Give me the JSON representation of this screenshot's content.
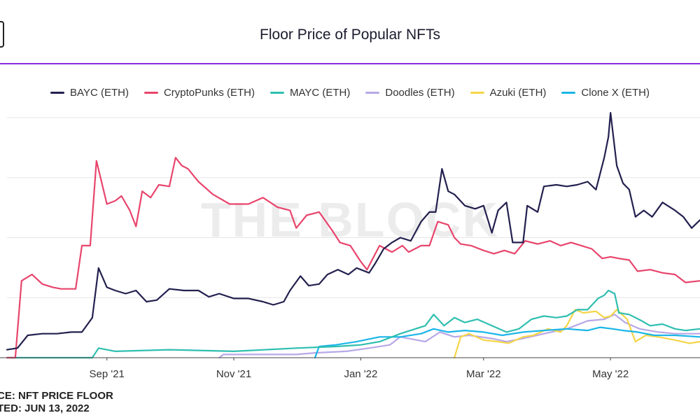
{
  "title": "Floor Price of Popular NFTs",
  "colors": {
    "accent": "#8a2be2"
  },
  "watermark": "THE BLOCK",
  "footer": {
    "source": "CE: NFT PRICE FLOOR",
    "updated": "TED: JUN 13, 2022"
  },
  "chart_data": {
    "type": "line",
    "title": "Floor Price of Popular NFTs",
    "xlabel": "",
    "ylabel": "",
    "x_ticks": [
      "Sep '21",
      "Nov '21",
      "Jan '22",
      "Mar '22",
      "May '22"
    ],
    "xlim": [
      "2021-07-15",
      "2022-06-13"
    ],
    "ylim": [
      0,
      150
    ],
    "grid": true,
    "legend": "top-center",
    "series": [
      {
        "name": "BAYC (ETH)",
        "color": "#23204f",
        "points": [
          [
            "2021-07-15",
            5
          ],
          [
            "2021-07-20",
            6
          ],
          [
            "2021-07-25",
            14
          ],
          [
            "2021-08-01",
            15
          ],
          [
            "2021-08-08",
            15
          ],
          [
            "2021-08-15",
            16
          ],
          [
            "2021-08-20",
            16
          ],
          [
            "2021-08-25",
            25
          ],
          [
            "2021-08-28",
            56
          ],
          [
            "2021-09-01",
            44
          ],
          [
            "2021-09-05",
            42
          ],
          [
            "2021-09-10",
            40
          ],
          [
            "2021-09-15",
            42
          ],
          [
            "2021-09-20",
            35
          ],
          [
            "2021-09-25",
            36
          ],
          [
            "2021-10-01",
            43
          ],
          [
            "2021-10-08",
            42
          ],
          [
            "2021-10-15",
            42
          ],
          [
            "2021-10-20",
            38
          ],
          [
            "2021-10-25",
            40
          ],
          [
            "2021-11-01",
            37
          ],
          [
            "2021-11-08",
            37
          ],
          [
            "2021-11-15",
            35
          ],
          [
            "2021-11-20",
            33
          ],
          [
            "2021-11-25",
            35
          ],
          [
            "2021-11-28",
            42
          ],
          [
            "2021-12-03",
            51
          ],
          [
            "2021-12-07",
            45
          ],
          [
            "2021-12-12",
            46
          ],
          [
            "2021-12-16",
            52
          ],
          [
            "2021-12-21",
            55
          ],
          [
            "2021-12-26",
            52
          ],
          [
            "2021-12-30",
            56
          ],
          [
            "2022-01-05",
            53
          ],
          [
            "2022-01-08",
            59
          ],
          [
            "2022-01-12",
            68
          ],
          [
            "2022-01-16",
            72
          ],
          [
            "2022-01-20",
            75
          ],
          [
            "2022-01-25",
            73
          ],
          [
            "2022-01-30",
            85
          ],
          [
            "2022-02-03",
            91
          ],
          [
            "2022-02-06",
            91
          ],
          [
            "2022-02-09",
            118
          ],
          [
            "2022-02-12",
            104
          ],
          [
            "2022-02-15",
            102
          ],
          [
            "2022-02-20",
            95
          ],
          [
            "2022-02-25",
            93
          ],
          [
            "2022-03-01",
            95
          ],
          [
            "2022-03-05",
            78
          ],
          [
            "2022-03-08",
            92
          ],
          [
            "2022-03-12",
            97
          ],
          [
            "2022-03-15",
            72
          ],
          [
            "2022-03-20",
            72
          ],
          [
            "2022-03-22",
            95
          ],
          [
            "2022-03-27",
            91
          ],
          [
            "2022-03-30",
            107
          ],
          [
            "2022-04-05",
            108
          ],
          [
            "2022-04-10",
            107
          ],
          [
            "2022-04-15",
            108
          ],
          [
            "2022-04-20",
            110
          ],
          [
            "2022-04-24",
            105
          ],
          [
            "2022-04-28",
            125
          ],
          [
            "2022-04-30",
            138
          ],
          [
            "2022-05-01",
            153
          ],
          [
            "2022-05-04",
            120
          ],
          [
            "2022-05-07",
            109
          ],
          [
            "2022-05-10",
            105
          ],
          [
            "2022-05-13",
            88
          ],
          [
            "2022-05-17",
            92
          ],
          [
            "2022-05-21",
            88
          ],
          [
            "2022-05-26",
            97
          ],
          [
            "2022-06-01",
            92
          ],
          [
            "2022-06-05",
            88
          ],
          [
            "2022-06-09",
            81
          ],
          [
            "2022-06-13",
            86
          ]
        ]
      },
      {
        "name": "CryptoPunks (ETH)",
        "color": "#e8456c",
        "points": [
          [
            "2021-07-15",
            0
          ],
          [
            "2021-07-19",
            0
          ],
          [
            "2021-07-22",
            48
          ],
          [
            "2021-07-27",
            52
          ],
          [
            "2021-08-01",
            46
          ],
          [
            "2021-08-06",
            44
          ],
          [
            "2021-08-10",
            43
          ],
          [
            "2021-08-17",
            43
          ],
          [
            "2021-08-20",
            70
          ],
          [
            "2021-08-24",
            70
          ],
          [
            "2021-08-27",
            123
          ],
          [
            "2021-09-01",
            96
          ],
          [
            "2021-09-05",
            98
          ],
          [
            "2021-09-08",
            101
          ],
          [
            "2021-09-12",
            92
          ],
          [
            "2021-09-15",
            82
          ],
          [
            "2021-09-18",
            104
          ],
          [
            "2021-09-22",
            100
          ],
          [
            "2021-09-26",
            108
          ],
          [
            "2021-10-01",
            107
          ],
          [
            "2021-10-04",
            125
          ],
          [
            "2021-10-07",
            120
          ],
          [
            "2021-10-10",
            118
          ],
          [
            "2021-10-15",
            110
          ],
          [
            "2021-10-22",
            102
          ],
          [
            "2021-10-30",
            96
          ],
          [
            "2021-11-08",
            96
          ],
          [
            "2021-11-15",
            100
          ],
          [
            "2021-11-22",
            94
          ],
          [
            "2021-11-28",
            92
          ],
          [
            "2021-12-01",
            81
          ],
          [
            "2021-12-06",
            89
          ],
          [
            "2021-12-12",
            91
          ],
          [
            "2021-12-18",
            80
          ],
          [
            "2021-12-22",
            72
          ],
          [
            "2021-12-27",
            70
          ],
          [
            "2022-01-01",
            60
          ],
          [
            "2022-01-04",
            55
          ],
          [
            "2022-01-10",
            70
          ],
          [
            "2022-01-16",
            66
          ],
          [
            "2022-01-21",
            70
          ],
          [
            "2022-01-24",
            66
          ],
          [
            "2022-01-30",
            70
          ],
          [
            "2022-02-03",
            70
          ],
          [
            "2022-02-07",
            85
          ],
          [
            "2022-02-12",
            83
          ],
          [
            "2022-02-15",
            75
          ],
          [
            "2022-02-18",
            71
          ],
          [
            "2022-02-23",
            70
          ],
          [
            "2022-03-01",
            67
          ],
          [
            "2022-03-06",
            65
          ],
          [
            "2022-03-11",
            67
          ],
          [
            "2022-03-16",
            65
          ],
          [
            "2022-03-21",
            73
          ],
          [
            "2022-03-27",
            71
          ],
          [
            "2022-04-02",
            73
          ],
          [
            "2022-04-07",
            70
          ],
          [
            "2022-04-12",
            72
          ],
          [
            "2022-04-17",
            70
          ],
          [
            "2022-04-22",
            68
          ],
          [
            "2022-04-27",
            62
          ],
          [
            "2022-05-01",
            63
          ],
          [
            "2022-05-05",
            62
          ],
          [
            "2022-05-10",
            61
          ],
          [
            "2022-05-14",
            54
          ],
          [
            "2022-05-20",
            55
          ],
          [
            "2022-05-26",
            53
          ],
          [
            "2022-06-01",
            52
          ],
          [
            "2022-06-06",
            47
          ],
          [
            "2022-06-13",
            48
          ]
        ]
      },
      {
        "name": "MAYC (ETH)",
        "color": "#2fbfb0",
        "points": [
          [
            "2021-07-15",
            0
          ],
          [
            "2021-08-25",
            0
          ],
          [
            "2021-08-28",
            6
          ],
          [
            "2021-09-05",
            4
          ],
          [
            "2021-10-01",
            5
          ],
          [
            "2021-11-01",
            4
          ],
          [
            "2021-12-01",
            6
          ],
          [
            "2021-12-20",
            7
          ],
          [
            "2022-01-01",
            8
          ],
          [
            "2022-01-10",
            10
          ],
          [
            "2022-01-20",
            15
          ],
          [
            "2022-02-01",
            20
          ],
          [
            "2022-02-05",
            27
          ],
          [
            "2022-02-10",
            20
          ],
          [
            "2022-02-15",
            25
          ],
          [
            "2022-02-20",
            22
          ],
          [
            "2022-02-26",
            24
          ],
          [
            "2022-03-05",
            20
          ],
          [
            "2022-03-12",
            16
          ],
          [
            "2022-03-18",
            18
          ],
          [
            "2022-03-24",
            24
          ],
          [
            "2022-03-30",
            26
          ],
          [
            "2022-04-05",
            25
          ],
          [
            "2022-04-10",
            26
          ],
          [
            "2022-04-15",
            30
          ],
          [
            "2022-04-20",
            30
          ],
          [
            "2022-04-25",
            37
          ],
          [
            "2022-04-28",
            39
          ],
          [
            "2022-04-30",
            42
          ],
          [
            "2022-05-03",
            40
          ],
          [
            "2022-05-05",
            28
          ],
          [
            "2022-05-10",
            27
          ],
          [
            "2022-05-16",
            23
          ],
          [
            "2022-05-20",
            20
          ],
          [
            "2022-05-26",
            21
          ],
          [
            "2022-06-01",
            18
          ],
          [
            "2022-06-06",
            17
          ],
          [
            "2022-06-13",
            18
          ]
        ]
      },
      {
        "name": "Doodles (ETH)",
        "color": "#b7a8e6",
        "points": [
          [
            "2021-10-25",
            0
          ],
          [
            "2021-10-27",
            2
          ],
          [
            "2021-12-01",
            2
          ],
          [
            "2021-12-10",
            3
          ],
          [
            "2021-12-25",
            4
          ],
          [
            "2022-01-05",
            6
          ],
          [
            "2022-01-15",
            8
          ],
          [
            "2022-01-20",
            13
          ],
          [
            "2022-02-01",
            10
          ],
          [
            "2022-02-08",
            16
          ],
          [
            "2022-02-15",
            13
          ],
          [
            "2022-02-22",
            14
          ],
          [
            "2022-03-05",
            12
          ],
          [
            "2022-03-12",
            10
          ],
          [
            "2022-03-20",
            12
          ],
          [
            "2022-03-30",
            15
          ],
          [
            "2022-04-10",
            18
          ],
          [
            "2022-04-20",
            23
          ],
          [
            "2022-04-28",
            24
          ],
          [
            "2022-05-03",
            27
          ],
          [
            "2022-05-08",
            22
          ],
          [
            "2022-05-15",
            18
          ],
          [
            "2022-05-24",
            16
          ],
          [
            "2022-06-01",
            15
          ],
          [
            "2022-06-13",
            15
          ]
        ]
      },
      {
        "name": "Azuki (ETH)",
        "color": "#f5d547",
        "points": [
          [
            "2022-02-15",
            0
          ],
          [
            "2022-02-18",
            13
          ],
          [
            "2022-02-22",
            15
          ],
          [
            "2022-03-01",
            11
          ],
          [
            "2022-03-08",
            10
          ],
          [
            "2022-03-13",
            9
          ],
          [
            "2022-03-20",
            13
          ],
          [
            "2022-03-25",
            14
          ],
          [
            "2022-04-01",
            18
          ],
          [
            "2022-04-07",
            16
          ],
          [
            "2022-04-10",
            20
          ],
          [
            "2022-04-14",
            30
          ],
          [
            "2022-04-18",
            28
          ],
          [
            "2022-04-24",
            29
          ],
          [
            "2022-04-28",
            25
          ],
          [
            "2022-05-01",
            26
          ],
          [
            "2022-05-04",
            30
          ],
          [
            "2022-05-09",
            24
          ],
          [
            "2022-05-13",
            10
          ],
          [
            "2022-05-18",
            14
          ],
          [
            "2022-05-24",
            13
          ],
          [
            "2022-06-01",
            11
          ],
          [
            "2022-06-08",
            9
          ],
          [
            "2022-06-13",
            10
          ]
        ]
      },
      {
        "name": "Clone X (ETH)",
        "color": "#1ab6e8",
        "points": [
          [
            "2021-12-10",
            0
          ],
          [
            "2021-12-12",
            7
          ],
          [
            "2021-12-20",
            8
          ],
          [
            "2021-12-30",
            10
          ],
          [
            "2022-01-10",
            13
          ],
          [
            "2022-01-20",
            13
          ],
          [
            "2022-01-30",
            15
          ],
          [
            "2022-02-05",
            18
          ],
          [
            "2022-02-12",
            16
          ],
          [
            "2022-02-20",
            17
          ],
          [
            "2022-03-01",
            16
          ],
          [
            "2022-03-10",
            14
          ],
          [
            "2022-03-20",
            16
          ],
          [
            "2022-03-30",
            17
          ],
          [
            "2022-04-10",
            18
          ],
          [
            "2022-04-20",
            17
          ],
          [
            "2022-04-26",
            19
          ],
          [
            "2022-05-02",
            18
          ],
          [
            "2022-05-07",
            17
          ],
          [
            "2022-05-14",
            16
          ],
          [
            "2022-05-22",
            14
          ],
          [
            "2022-06-01",
            14
          ],
          [
            "2022-06-13",
            13
          ]
        ]
      }
    ]
  }
}
